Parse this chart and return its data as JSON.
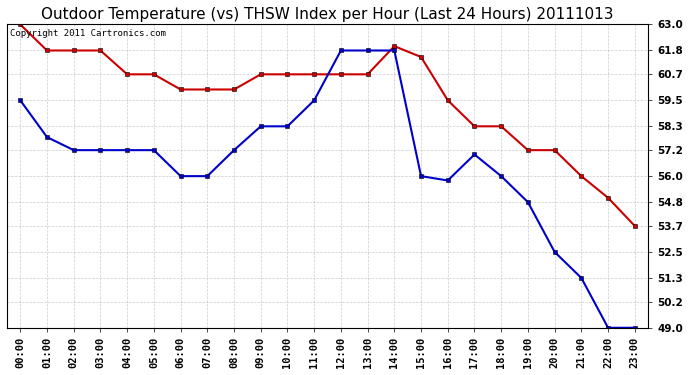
{
  "title": "Outdoor Temperature (vs) THSW Index per Hour (Last 24 Hours) 20111013",
  "copyright": "Copyright 2011 Cartronics.com",
  "hours": [
    "00:00",
    "01:00",
    "02:00",
    "03:00",
    "04:00",
    "05:00",
    "06:00",
    "07:00",
    "08:00",
    "09:00",
    "10:00",
    "11:00",
    "12:00",
    "13:00",
    "14:00",
    "15:00",
    "16:00",
    "17:00",
    "18:00",
    "19:00",
    "20:00",
    "21:00",
    "22:00",
    "23:00"
  ],
  "temp_blue": [
    59.5,
    57.8,
    57.2,
    57.2,
    57.2,
    57.2,
    56.0,
    56.0,
    57.2,
    58.3,
    58.3,
    59.5,
    61.8,
    61.8,
    61.8,
    56.0,
    55.8,
    57.0,
    56.0,
    54.8,
    52.5,
    51.3,
    49.0,
    49.0
  ],
  "thsw_red": [
    63.0,
    61.8,
    61.8,
    61.8,
    60.7,
    60.7,
    60.0,
    60.0,
    60.0,
    60.7,
    60.7,
    60.7,
    60.7,
    60.7,
    62.0,
    61.5,
    59.5,
    58.3,
    58.3,
    57.2,
    57.2,
    56.0,
    55.0,
    53.7
  ],
  "ylim_min": 49.0,
  "ylim_max": 63.0,
  "yticks": [
    49.0,
    50.2,
    51.3,
    52.5,
    53.7,
    54.8,
    56.0,
    57.2,
    58.3,
    59.5,
    60.7,
    61.8,
    63.0
  ],
  "blue_color": "#0000cc",
  "red_color": "#cc0000",
  "bg_color": "#ffffff",
  "grid_color": "#aaaaaa",
  "title_fontsize": 11,
  "tick_fontsize": 7.5,
  "copyright_fontsize": 6.5
}
